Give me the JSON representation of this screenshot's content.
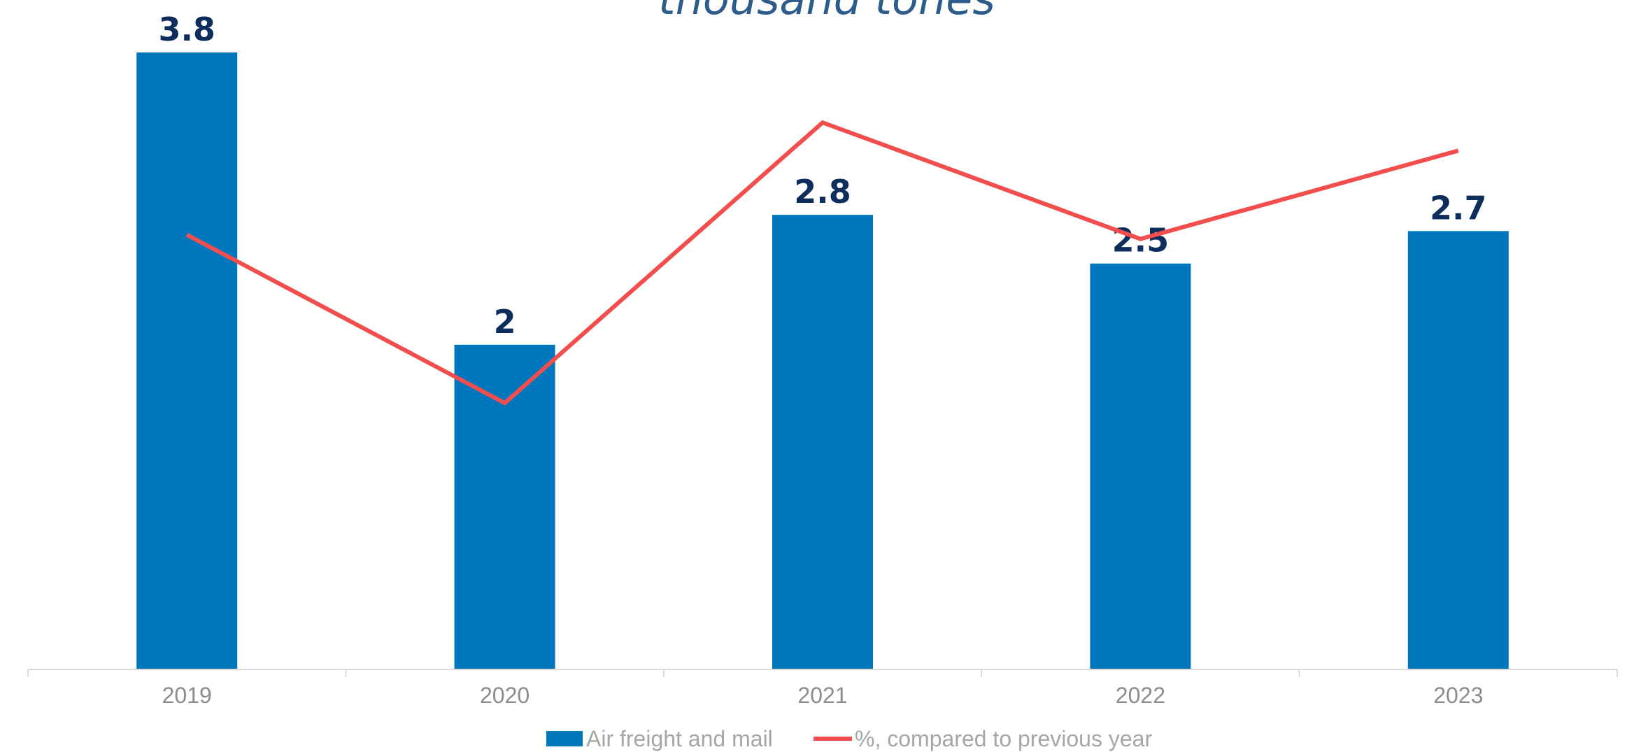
{
  "chart_data": {
    "type": "bar",
    "title": "thousand tones",
    "categories": [
      "2019",
      "2020",
      "2021",
      "2022",
      "2023"
    ],
    "series": [
      {
        "name": "Air freight and mail",
        "type": "bar",
        "axis": "primary",
        "values": [
          3.8,
          2,
          2.8,
          2.5,
          2.7
        ],
        "data_labels": [
          "3.8",
          "2",
          "2.8",
          "2.5",
          "2.7"
        ],
        "color": "#0077BD"
      },
      {
        "name": "%, compared to previous year",
        "type": "line",
        "axis": "secondary",
        "values": [
          101,
          89,
          109,
          100.7,
          107
        ],
        "color": "#F24E4E"
      }
    ],
    "ylim": [
      0,
      3.8
    ],
    "y2lim": [
      70,
      114
    ],
    "grid": false,
    "legend_position": "bottom",
    "label_color": "#0D2D5C",
    "axis_color": "#D9D9D9"
  }
}
